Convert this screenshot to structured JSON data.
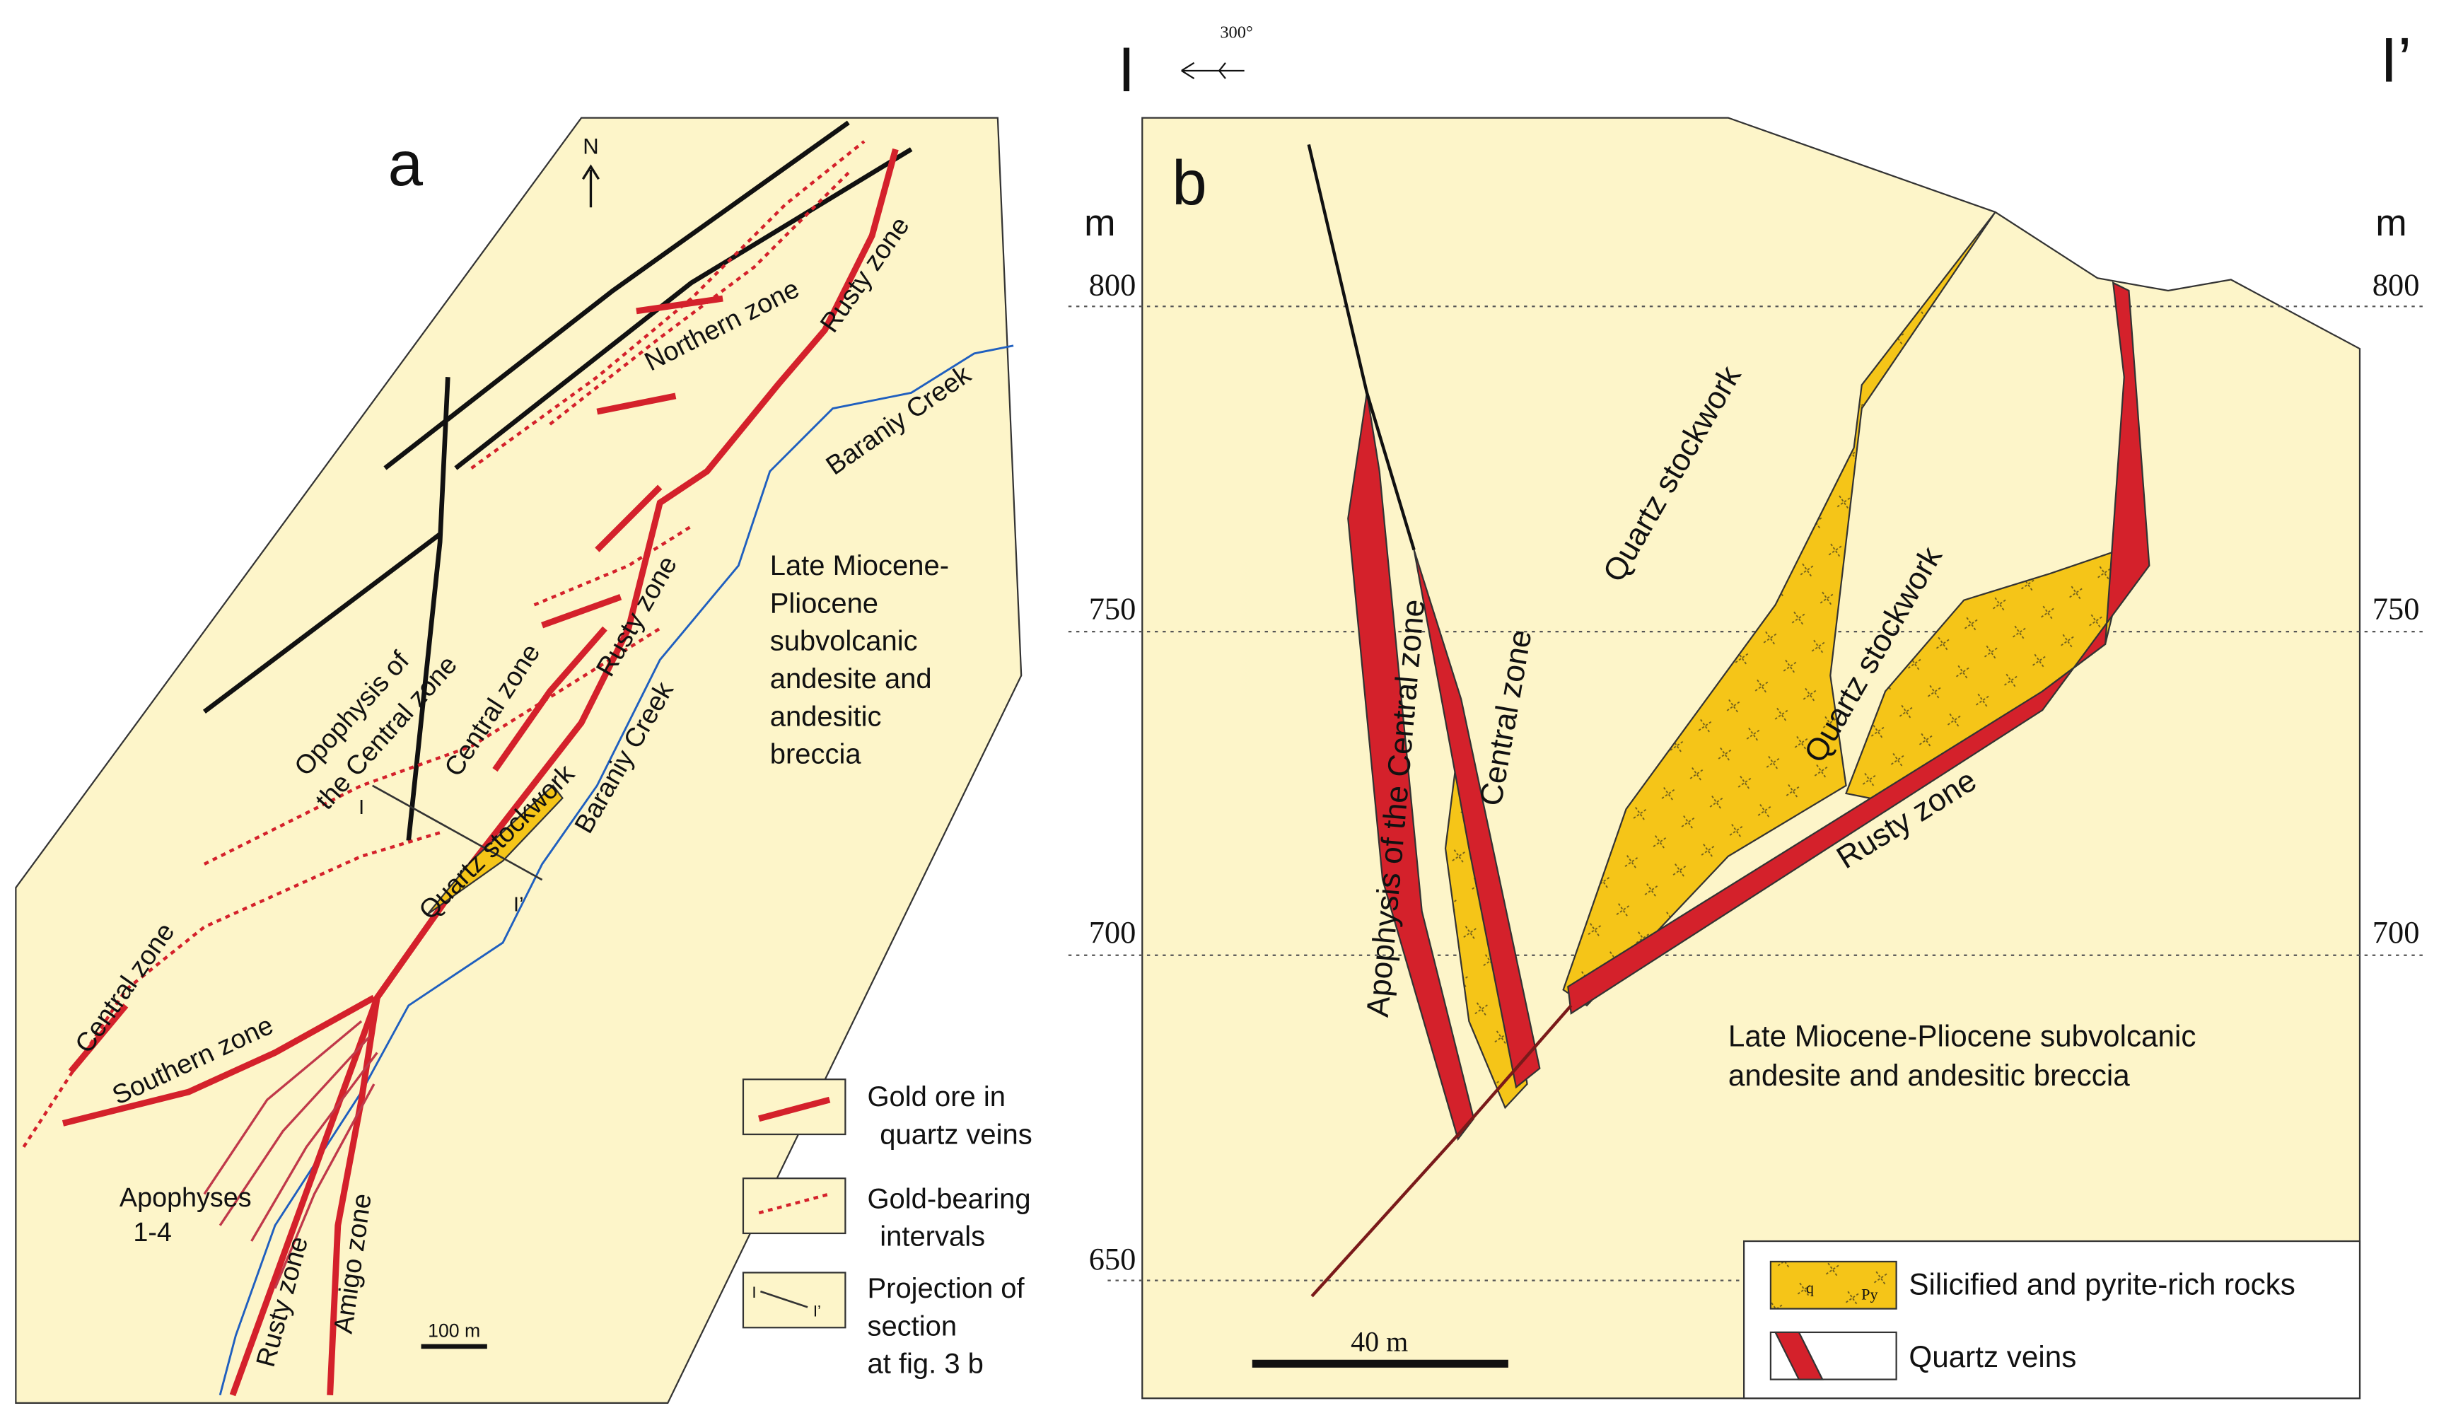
{
  "panel_a": {
    "label": "a",
    "north": "N",
    "map_labels": [
      "Northern zone",
      "Rusty zone",
      "Baraniy Creek",
      "Opophysis of",
      "the Central zone",
      "Central zone",
      "Quartz stockwork",
      "Rusty zone",
      "Baraniy Creek",
      "I",
      "I’",
      "Central zone",
      "Southern zone",
      "Apophyses",
      "1-4",
      "Rusty zone",
      "Amigo zone"
    ],
    "rock_description": [
      "Late Miocene-",
      "Pliocene",
      "subvolcanic",
      "andesite and",
      "andesitic",
      "breccia"
    ],
    "scale": "100 m",
    "legend": [
      {
        "lines": [
          "Gold ore in",
          "quartz veins"
        ]
      },
      {
        "lines": [
          "Gold-bearing",
          "intervals"
        ]
      },
      {
        "lines": [
          "Projection of",
          "section",
          "at fig. 3 b"
        ],
        "symbol_labels": [
          "I",
          "I’"
        ]
      }
    ]
  },
  "panel_b": {
    "label": "b",
    "section_start": "I",
    "section_end": "I’",
    "azimuth": "300°",
    "unit_left": "m",
    "unit_right": "m",
    "elevations_left": [
      "800",
      "750",
      "700",
      "650"
    ],
    "elevations_right": [
      "800",
      "750",
      "700"
    ],
    "section_labels": [
      "Apophysis of the Central zone",
      "Central zone",
      "Quartz stockwork",
      "Quartz stockwork",
      "Rusty zone"
    ],
    "rock_description": [
      "Late Miocene-Pliocene subvolcanic",
      "andesite and andesitic breccia"
    ],
    "scale": "40 m",
    "legend": [
      {
        "label": "Silicified and pyrite-rich rocks",
        "symbol_labels": [
          "q",
          "Py"
        ]
      },
      {
        "label": "Quartz veins"
      }
    ]
  }
}
